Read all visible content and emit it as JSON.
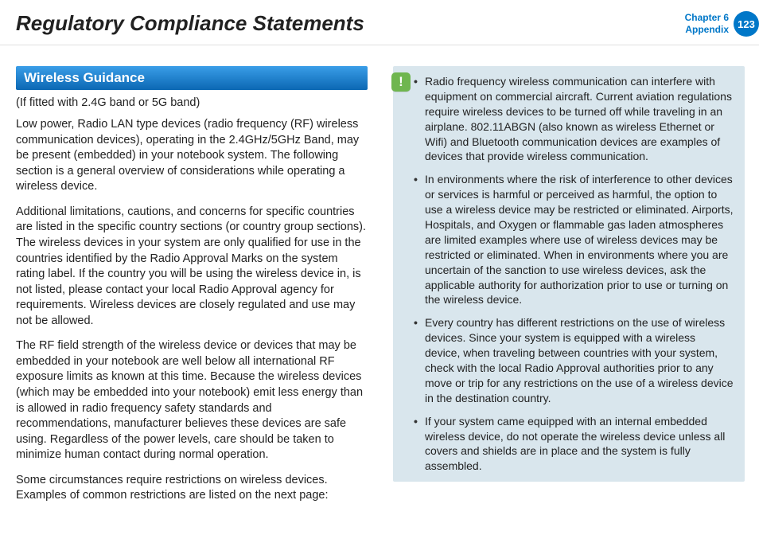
{
  "header": {
    "title": "Regulatory Compliance Statements",
    "chapter_line1": "Chapter 6",
    "chapter_line2": "Appendix",
    "page_number": "123"
  },
  "left": {
    "section_heading": "Wireless Guidance",
    "subnote": "(If fitted with 2.4G band or 5G band)",
    "p1": "Low power, Radio LAN type devices (radio frequency (RF) wireless communication devices), operating in the 2.4GHz/5GHz Band, may be present (embedded) in your notebook system. The following section is a general overview of considerations while operating a wireless device.",
    "p2": "Additional limitations, cautions, and concerns for specific countries are listed in the specific country sections (or country group sections). The wireless devices in your system are only qualified for use in the countries identified by the Radio Approval Marks on the system rating label. If the country you will be using the wireless device in, is not listed, please contact your local Radio Approval agency for requirements. Wireless devices are closely regulated and use may not be allowed.",
    "p3": "The RF field strength of the wireless device or devices that may be embedded in your notebook are well below all international RF exposure limits as known at this time. Because the wireless devices (which may be embedded into your notebook) emit less energy than is allowed in radio frequency safety standards and recommendations, manufacturer believes these devices are safe using. Regardless of the power levels, care should be taken to minimize human contact during normal operation.",
    "p4": "Some circumstances require restrictions on wireless devices. Examples of common restrictions are listed on the next page:"
  },
  "right": {
    "items": [
      "Radio frequency wireless communication can interfere with equipment on commercial aircraft. Current aviation regulations require wireless devices to be turned off while traveling in an airplane. 802.11ABGN (also known as wireless Ethernet or Wifi) and Bluetooth communication devices are examples of devices that provide wireless communication.",
      "In environments where the risk of interference to other devices or services is harmful or perceived as harmful, the option to use a wireless device may be restricted or eliminated. Airports, Hospitals, and Oxygen or flammable gas laden atmospheres are limited examples where use of wireless devices may be restricted or eliminated. When in environments where you are uncertain of the sanction to use wireless devices, ask the applicable authority for authorization prior to use or turning on the wireless device.",
      "Every country has different restrictions on the use of wireless devices. Since your system is equipped with a wireless device, when traveling between countries with your system, check with the local Radio Approval authorities prior to any move or trip for any restrictions on the use of a wireless device in the destination country.",
      "If your system came equipped with an internal embedded wireless device, do not operate the wireless device unless all covers and shields are in place and the system is fully assembled."
    ]
  },
  "colors": {
    "brand_blue": "#0077c8",
    "heading_grad_top": "#3a9ee8",
    "heading_grad_bot": "#0b67b3",
    "callout_bg": "#d9e6ed",
    "callout_icon_bg": "#6fb64f"
  }
}
